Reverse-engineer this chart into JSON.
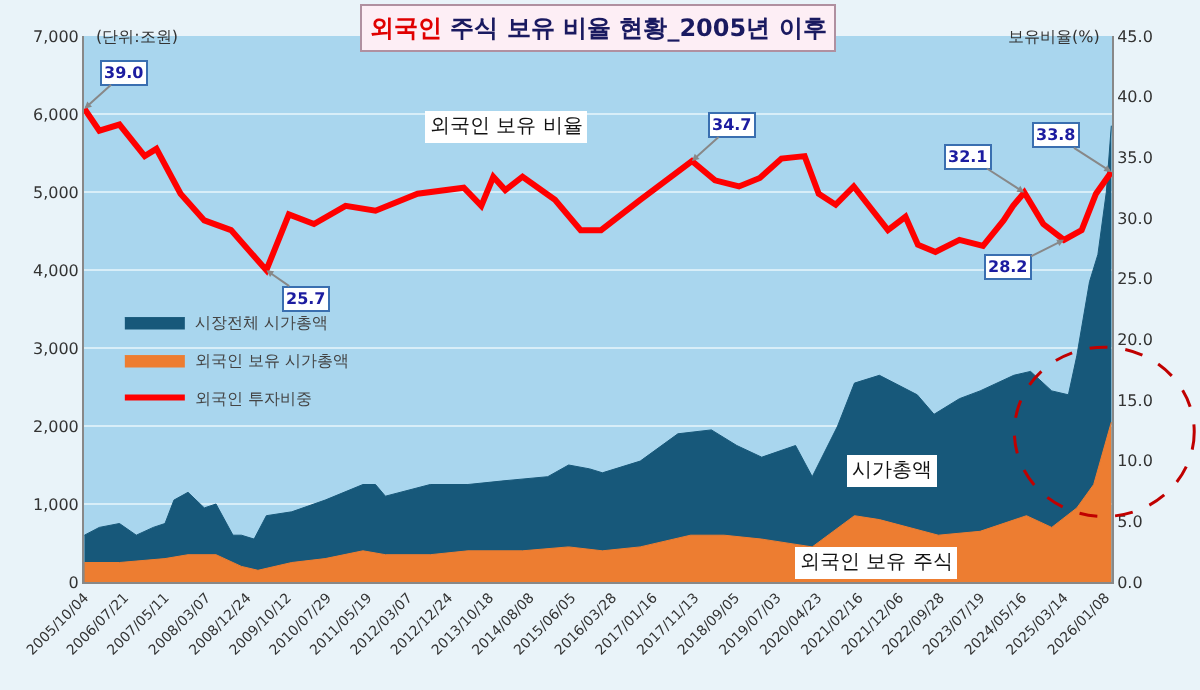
{
  "chart_data": {
    "type": "area",
    "title": "외국인 주식 보유 비율 현황_2005년 이후",
    "ylabel": "(단위:조원)",
    "y2label": "보유비율(%)",
    "annotations": [
      "외국인 보유 비율",
      "시가총액",
      "외국인 보유 주식"
    ],
    "series": [
      {
        "name": "시장전체 시가총액",
        "color": "#17587a",
        "x": [
          "2005-10-04",
          "2006-01-20",
          "2006-06-15",
          "2006-10-15",
          "2007-02-15",
          "2007-05-11",
          "2007-07-15",
          "2007-10-25",
          "2008-02-20",
          "2008-05-15",
          "2008-09-15",
          "2008-11-15",
          "2009-02-15",
          "2009-05-15",
          "2009-11-15",
          "2010-07-15",
          "2011-04-15",
          "2011-07-15",
          "2011-09-25",
          "2012-08-15",
          "2013-05-15",
          "2014-02-15",
          "2014-12-15",
          "2015-05-15",
          "2015-10-15",
          "2016-01-15",
          "2016-10-15",
          "2017-07-15",
          "2018-03-15",
          "2018-09-15",
          "2019-03-15",
          "2019-11-15",
          "2020-03-15",
          "2020-09-15",
          "2021-01-15",
          "2021-07-15",
          "2022-04-15",
          "2022-08-15",
          "2023-02-15",
          "2023-07-15",
          "2024-03-15",
          "2024-07-15",
          "2024-12-15",
          "2025-04-15",
          "2025-06-15",
          "2025-09-15",
          "2025-11-15",
          "2026-01-15",
          "2026-02-20"
        ],
        "values": [
          600,
          700,
          750,
          600,
          700,
          750,
          1050,
          1150,
          950,
          1000,
          600,
          600,
          550,
          850,
          900,
          1050,
          1250,
          1250,
          1100,
          1250,
          1250,
          1300,
          1350,
          1500,
          1450,
          1400,
          1550,
          1900,
          1950,
          1750,
          1600,
          1750,
          1350,
          2000,
          2550,
          2650,
          2400,
          2150,
          2350,
          2450,
          2650,
          2700,
          2450,
          2400,
          2900,
          3850,
          4200,
          5000,
          5850
        ]
      },
      {
        "name": "외국인 보유 시가총액",
        "color": "#ed7d31",
        "x": [
          "2005-10-04",
          "2006-06-15",
          "2007-05-11",
          "2007-10-25",
          "2008-05-15",
          "2008-11-15",
          "2009-03-15",
          "2009-11-15",
          "2010-07-15",
          "2011-04-15",
          "2011-09-25",
          "2012-08-15",
          "2013-05-15",
          "2014-06-15",
          "2015-05-15",
          "2016-01-15",
          "2016-10-15",
          "2017-10-15",
          "2018-06-15",
          "2019-03-15",
          "2020-03-15",
          "2021-01-15",
          "2021-07-15",
          "2022-09-15",
          "2023-07-15",
          "2024-06-15",
          "2024-12-15",
          "2025-06-15",
          "2025-10-15",
          "2026-02-20"
        ],
        "values": [
          250,
          250,
          300,
          350,
          350,
          200,
          150,
          250,
          300,
          400,
          350,
          350,
          400,
          400,
          450,
          400,
          450,
          600,
          600,
          550,
          450,
          850,
          800,
          600,
          650,
          850,
          700,
          950,
          1250,
          2050
        ]
      },
      {
        "name": "외국인 투자비중",
        "type": "line",
        "axis": "y2",
        "color": "#ff0000",
        "x": [
          "2005-10-04",
          "2006-01-20",
          "2006-06-15",
          "2006-12-15",
          "2007-03-10",
          "2007-09-01",
          "2008-02-20",
          "2008-09-01",
          "2009-05-15",
          "2009-10-25",
          "2010-04-25",
          "2010-12-10",
          "2011-07-15",
          "2012-05-15",
          "2013-04-15",
          "2013-08-20",
          "2013-11-15",
          "2014-02-10",
          "2014-06-15",
          "2015-02-05",
          "2015-08-10",
          "2016-01-05",
          "2016-10-15",
          "2017-10-25",
          "2018-04-10",
          "2018-10-01",
          "2019-03-01",
          "2019-08-05",
          "2020-01-20",
          "2020-05-01",
          "2020-09-01",
          "2021-01-10",
          "2021-09-15",
          "2022-01-20",
          "2022-04-20",
          "2022-08-25",
          "2023-02-15",
          "2023-08-05",
          "2024-01-01",
          "2024-03-10",
          "2024-05-30",
          "2024-10-15",
          "2025-03-14",
          "2025-07-20",
          "2025-11-01",
          "2026-02-20"
        ],
        "values": [
          39.0,
          37.2,
          37.7,
          35.1,
          35.7,
          32.0,
          29.8,
          29.0,
          25.7,
          30.3,
          29.5,
          31.0,
          30.6,
          32.0,
          32.5,
          31.0,
          33.4,
          32.3,
          33.4,
          31.5,
          29.0,
          29.0,
          31.5,
          34.7,
          33.1,
          32.6,
          33.3,
          34.9,
          35.1,
          32.0,
          31.1,
          32.6,
          29.0,
          30.1,
          27.8,
          27.2,
          28.2,
          27.7,
          29.8,
          31.0,
          32.1,
          29.5,
          28.2,
          29.0,
          32.0,
          33.8
        ],
        "value_labels": [
          "39.0",
          null,
          null,
          null,
          null,
          null,
          null,
          null,
          "25.7",
          null,
          null,
          null,
          null,
          null,
          null,
          null,
          null,
          null,
          null,
          null,
          null,
          null,
          null,
          "34.7",
          null,
          null,
          null,
          null,
          null,
          null,
          null,
          null,
          null,
          null,
          null,
          null,
          null,
          null,
          null,
          null,
          "32.1",
          null,
          "28.2",
          null,
          null,
          "33.8"
        ]
      }
    ],
    "xlim": [
      "2005-10-01",
      "2026-02-25"
    ],
    "xticks": [
      {
        "value": "2005-10-04",
        "label": "2005/10/04"
      },
      {
        "value": "2006-07-21",
        "label": "2006/07/21"
      },
      {
        "value": "2007-05-11",
        "label": "2007/05/11"
      },
      {
        "value": "2008-03-07",
        "label": "2008/03/07"
      },
      {
        "value": "2008-12-24",
        "label": "2008/12/24"
      },
      {
        "value": "2009-10-12",
        "label": "2009/10/12"
      },
      {
        "value": "2010-07-29",
        "label": "2010/07/29"
      },
      {
        "value": "2011-05-19",
        "label": "2011/05/19"
      },
      {
        "value": "2012-03-07",
        "label": "2012/03/07"
      },
      {
        "value": "2012-12-24",
        "label": "2012/12/24"
      },
      {
        "value": "2013-10-18",
        "label": "2013/10/18"
      },
      {
        "value": "2014-08-08",
        "label": "2014/08/08"
      },
      {
        "value": "2015-06-05",
        "label": "2015/06/05"
      },
      {
        "value": "2016-03-28",
        "label": "2016/03/28"
      },
      {
        "value": "2017-01-16",
        "label": "2017/01/16"
      },
      {
        "value": "2017-11-13",
        "label": "2017/11/13"
      },
      {
        "value": "2018-09-05",
        "label": "2018/09/05"
      },
      {
        "value": "2019-07-03",
        "label": "2019/07/03"
      },
      {
        "value": "2020-04-23",
        "label": "2020/04/23"
      },
      {
        "value": "2021-02-16",
        "label": "2021/02/16"
      },
      {
        "value": "2021-12-06",
        "label": "2021/12/06"
      },
      {
        "value": "2022-09-28",
        "label": "2022/09/28"
      },
      {
        "value": "2023-07-19",
        "label": "2023/07/19"
      },
      {
        "value": "2024-05-16",
        "label": "2024/05/16"
      },
      {
        "value": "2025-03-14",
        "label": "2025/03/14"
      },
      {
        "value": "2026-01-08",
        "label": "2026/01/08"
      }
    ],
    "ylim": [
      0,
      7000
    ],
    "yticks": [
      0,
      {
        "value": 1000,
        "label": "1,000"
      },
      {
        "value": 2000,
        "label": "2,000"
      },
      {
        "value": 3000,
        "label": "3,000"
      },
      {
        "value": 4000,
        "label": "4,000"
      },
      {
        "value": 5000,
        "label": "5,000"
      },
      {
        "value": 6000,
        "label": "6,000"
      },
      {
        "value": 7000,
        "label": "7,000"
      }
    ],
    "y2lim": [
      0,
      45
    ],
    "y2ticks": [
      {
        "value": 0,
        "label": "0.0"
      },
      {
        "value": 5,
        "label": "5.0"
      },
      {
        "value": 10,
        "label": "10.0"
      },
      {
        "value": 15,
        "label": "15.0"
      },
      {
        "value": 20,
        "label": "20.0"
      },
      {
        "value": 25,
        "label": "25.0"
      },
      {
        "value": 30,
        "label": "30.0"
      },
      {
        "value": 35,
        "label": "35.0"
      },
      {
        "value": 40,
        "label": "40.0"
      },
      {
        "value": 45,
        "label": "45.0"
      }
    ],
    "grid": "y",
    "legend": "left",
    "marker": "none",
    "line_style": "solid"
  }
}
